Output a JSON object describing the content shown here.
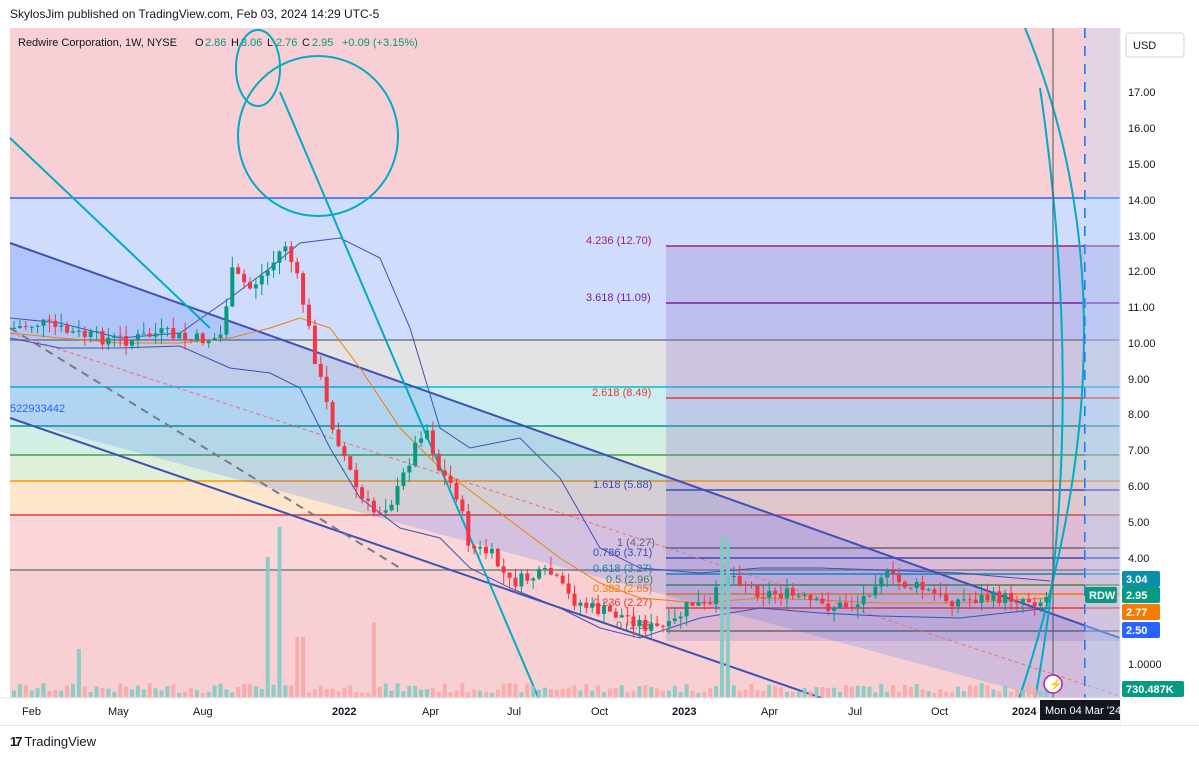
{
  "header": {
    "publisher": "SkylosJim published on TradingView.com, Feb 03, 2024 14:29 UTC-5"
  },
  "symbol": {
    "name": "Redwire Corporation, 1W, NYSE",
    "o_label": "O",
    "o": "2.86",
    "h_label": "H",
    "h": "3.06",
    "l_label": "L",
    "l": "2.76",
    "c_label": "C",
    "c": "2.95",
    "change": "+0.09 (+3.15%)"
  },
  "currency": "USD",
  "left_note": "522933442",
  "price_axis": [
    "17.00",
    "16.00",
    "15.00",
    "14.00",
    "13.00",
    "12.00",
    "11.00",
    "10.00",
    "9.00",
    "8.00",
    "7.00",
    "6.00",
    "5.00",
    "4.00",
    "1.0000"
  ],
  "price_badges": [
    {
      "label": "3.04",
      "color": "#0b8fa8"
    },
    {
      "label": "RDW",
      "color": "#089981"
    },
    {
      "label": "2.95",
      "color": "#089981"
    },
    {
      "label": "2.77",
      "color": "#f57c00"
    },
    {
      "label": "2.50",
      "color": "#2962ff"
    },
    {
      "label": "730.487K",
      "color": "#089981"
    }
  ],
  "time_axis": [
    "Feb",
    "May",
    "Aug",
    "2022",
    "Apr",
    "Jul",
    "Oct",
    "2023",
    "Apr",
    "Jul",
    "Oct",
    "2024"
  ],
  "crosshair_date": "Mon 04 Mar '24",
  "fib_levels": [
    {
      "label": "4.236 (12.70)",
      "color": "#9c2770"
    },
    {
      "label": "3.618 (11.09)",
      "color": "#7b1fa2"
    },
    {
      "label": "2.618 (8.49)",
      "color": "#e53935"
    },
    {
      "label": "1.618 (5.88)",
      "color": "#3949ab"
    },
    {
      "label": "1 (4.27)",
      "color": "#666666"
    },
    {
      "label": "0.786 (3.71)",
      "color": "#3949ab"
    },
    {
      "label": "0.618 (3.27)",
      "color": "#0b8fa8"
    },
    {
      "label": "0.5 (2.96)",
      "color": "#388e3c"
    },
    {
      "label": "0.382 (2.65)",
      "color": "#f57c00"
    },
    {
      "label": "0.236 (2.27)",
      "color": "#e53935"
    },
    {
      "label": "0 (1.66)",
      "color": "#666666"
    }
  ],
  "footer": {
    "brand": "TradingView"
  },
  "colors": {
    "up": "#089981",
    "down": "#f23645"
  }
}
